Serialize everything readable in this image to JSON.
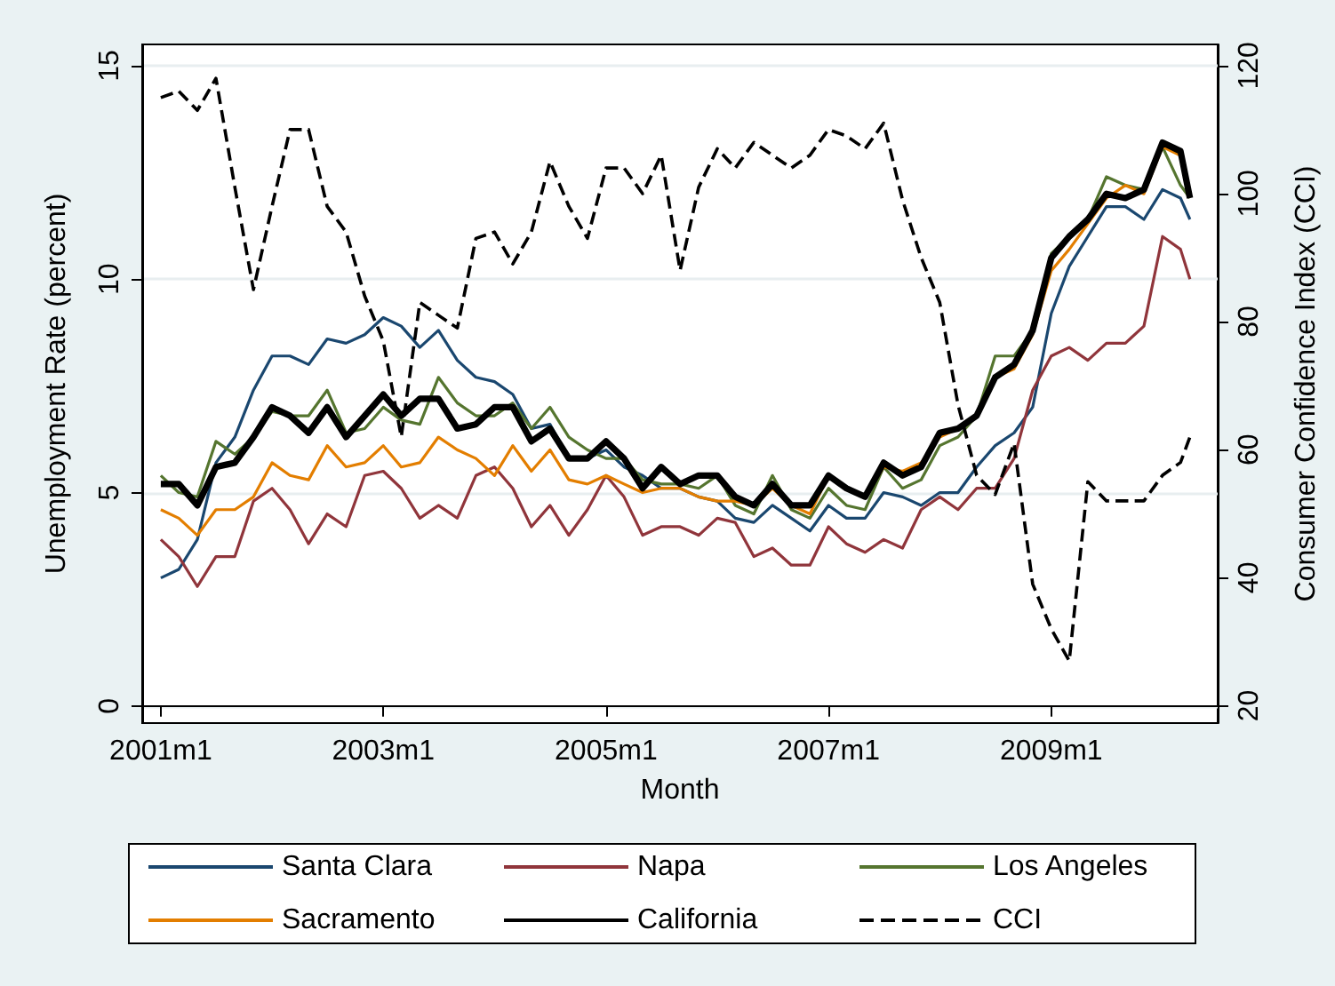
{
  "chart_data": {
    "type": "line",
    "xlabel": "Month",
    "ylabel": "Unemployment Rate (percent)",
    "y2label": "Consumer Confidence Index (CCI)",
    "x": [
      "2001-01",
      "2001-03",
      "2001-05",
      "2001-07",
      "2001-09",
      "2001-11",
      "2002-01",
      "2002-03",
      "2002-05",
      "2002-07",
      "2002-09",
      "2002-11",
      "2003-01",
      "2003-03",
      "2003-05",
      "2003-07",
      "2003-09",
      "2003-11",
      "2004-01",
      "2004-03",
      "2004-05",
      "2004-07",
      "2004-09",
      "2004-11",
      "2005-01",
      "2005-03",
      "2005-05",
      "2005-07",
      "2005-09",
      "2005-11",
      "2006-01",
      "2006-03",
      "2006-05",
      "2006-07",
      "2006-09",
      "2006-11",
      "2007-01",
      "2007-03",
      "2007-05",
      "2007-07",
      "2007-09",
      "2007-11",
      "2008-01",
      "2008-03",
      "2008-05",
      "2008-07",
      "2008-09",
      "2008-11",
      "2009-01",
      "2009-03",
      "2009-05",
      "2009-07",
      "2009-09",
      "2009-11",
      "2010-01",
      "2010-03",
      "2010-04"
    ],
    "xlim": [
      "2000-11",
      "2010-07"
    ],
    "xticks": [
      {
        "value": "2001-01",
        "label": "2001m1"
      },
      {
        "value": "2003-01",
        "label": "2003m1"
      },
      {
        "value": "2005-01",
        "label": "2005m1"
      },
      {
        "value": "2007-01",
        "label": "2007m1"
      },
      {
        "value": "2009-01",
        "label": "2009m1"
      }
    ],
    "ylim": [
      -0.4,
      15.5
    ],
    "yticks": [
      0,
      5,
      10,
      15
    ],
    "y2lim": [
      17.3,
      123.3
    ],
    "y2ticks": [
      20,
      40,
      60,
      80,
      100,
      120
    ],
    "grid": "y",
    "legend": "bottom",
    "marker": "none",
    "series": [
      {
        "name": "Santa Clara",
        "color": "#1a476f",
        "values": [
          3.0,
          3.2,
          3.9,
          5.7,
          6.3,
          7.4,
          8.2,
          8.2,
          8.0,
          8.6,
          8.5,
          8.7,
          9.1,
          8.9,
          8.4,
          8.8,
          8.1,
          7.7,
          7.6,
          7.3,
          6.5,
          6.6,
          5.8,
          5.8,
          6.0,
          5.6,
          5.4,
          5.1,
          5.1,
          4.9,
          4.8,
          4.4,
          4.3,
          4.7,
          4.4,
          4.1,
          4.7,
          4.4,
          4.4,
          5.0,
          4.9,
          4.7,
          5.0,
          5.0,
          5.6,
          6.1,
          6.4,
          7.0,
          9.2,
          10.3,
          11.0,
          11.7,
          11.7,
          11.4,
          12.1,
          11.9,
          11.4
        ]
      },
      {
        "name": "Napa",
        "color": "#90353b",
        "values": [
          3.9,
          3.5,
          2.8,
          3.5,
          3.5,
          4.8,
          5.1,
          4.6,
          3.8,
          4.5,
          4.2,
          5.4,
          5.5,
          5.1,
          4.4,
          4.7,
          4.4,
          5.4,
          5.6,
          5.1,
          4.2,
          4.7,
          4.0,
          4.6,
          5.4,
          4.9,
          4.0,
          4.2,
          4.2,
          4.0,
          4.4,
          4.3,
          3.5,
          3.7,
          3.3,
          3.3,
          4.2,
          3.8,
          3.6,
          3.9,
          3.7,
          4.6,
          4.9,
          4.6,
          5.1,
          5.1,
          5.8,
          7.4,
          8.2,
          8.4,
          8.1,
          8.5,
          8.5,
          8.9,
          11.0,
          10.7,
          10.0
        ]
      },
      {
        "name": "Los Angeles",
        "color": "#55752f",
        "values": [
          5.4,
          5.0,
          4.9,
          6.2,
          5.9,
          6.3,
          6.9,
          6.8,
          6.8,
          7.4,
          6.4,
          6.5,
          7.0,
          6.7,
          6.6,
          7.7,
          7.1,
          6.8,
          6.8,
          7.1,
          6.5,
          7.0,
          6.3,
          6.0,
          5.8,
          5.8,
          5.3,
          5.2,
          5.2,
          5.1,
          5.4,
          4.7,
          4.5,
          5.4,
          4.6,
          4.4,
          5.1,
          4.7,
          4.6,
          5.6,
          5.1,
          5.3,
          6.1,
          6.3,
          6.8,
          8.2,
          8.2,
          8.8,
          10.6,
          11.0,
          11.4,
          12.4,
          12.2,
          12.1,
          13.1,
          12.2,
          11.9
        ]
      },
      {
        "name": "Sacramento",
        "color": "#e37e00",
        "values": [
          4.6,
          4.4,
          4.0,
          4.6,
          4.6,
          4.9,
          5.7,
          5.4,
          5.3,
          6.1,
          5.6,
          5.7,
          6.1,
          5.6,
          5.7,
          6.3,
          6.0,
          5.8,
          5.4,
          6.1,
          5.5,
          6.0,
          5.3,
          5.2,
          5.4,
          5.2,
          5.0,
          5.1,
          5.1,
          4.9,
          4.8,
          4.8,
          4.7,
          5.1,
          4.7,
          4.5,
          5.4,
          5.1,
          4.9,
          5.6,
          5.5,
          5.7,
          6.3,
          6.5,
          6.8,
          7.7,
          7.9,
          8.7,
          10.2,
          10.7,
          11.3,
          11.9,
          12.2,
          12.0,
          13.1,
          12.9,
          12.0
        ]
      },
      {
        "name": "California",
        "color": "#000000",
        "values": [
          5.2,
          5.2,
          4.7,
          5.6,
          5.7,
          6.3,
          7.0,
          6.8,
          6.4,
          7.0,
          6.3,
          6.8,
          7.3,
          6.8,
          7.2,
          7.2,
          6.5,
          6.6,
          7.0,
          7.0,
          6.2,
          6.5,
          5.8,
          5.8,
          6.2,
          5.8,
          5.1,
          5.6,
          5.2,
          5.4,
          5.4,
          4.9,
          4.7,
          5.2,
          4.7,
          4.7,
          5.4,
          5.1,
          4.9,
          5.7,
          5.4,
          5.6,
          6.4,
          6.5,
          6.8,
          7.7,
          8.0,
          8.8,
          10.5,
          11.0,
          11.4,
          12.0,
          11.9,
          12.1,
          13.2,
          13.0,
          11.9
        ]
      },
      {
        "name": "CCI",
        "color": "#000000",
        "axis": "y2",
        "line_style": "dashed",
        "values": [
          115,
          116,
          113,
          118,
          101,
          85,
          98,
          110,
          110,
          98,
          94,
          84,
          77,
          62,
          83,
          81,
          79,
          93,
          94,
          89,
          94,
          105,
          98,
          93,
          104,
          104,
          100,
          106,
          88,
          101,
          107,
          104,
          108,
          106,
          104,
          106,
          110,
          109,
          107,
          111,
          99,
          90,
          83,
          67,
          56,
          53,
          61,
          39,
          32,
          27,
          55,
          52,
          52,
          52,
          56,
          58,
          62
        ]
      }
    ]
  }
}
